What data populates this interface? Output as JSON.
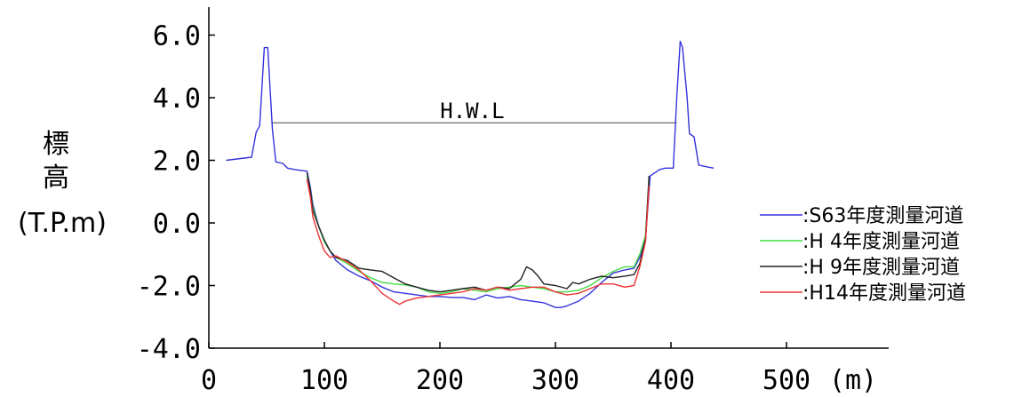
{
  "chart_data": {
    "type": "line",
    "ylabel": [
      "標",
      "高",
      "(T.P.m)"
    ],
    "xunit": "(m)",
    "xlim": [
      0,
      550
    ],
    "ylim": [
      -4.0,
      6.5
    ],
    "xticks": [
      {
        "value": 0,
        "label": "0"
      },
      {
        "value": 100,
        "label": "100"
      },
      {
        "value": 200,
        "label": "200"
      },
      {
        "value": 300,
        "label": "300"
      },
      {
        "value": 400,
        "label": "400"
      },
      {
        "value": 500,
        "label": "500"
      }
    ],
    "yticks": [
      {
        "value": 6.0,
        "label": "6.0"
      },
      {
        "value": 4.0,
        "label": "4.0"
      },
      {
        "value": 2.0,
        "label": "2.0"
      },
      {
        "value": 0.0,
        "label": "0.0"
      },
      {
        "value": -2.0,
        "label": "-2.0"
      },
      {
        "value": -4.0,
        "label": "-4.0"
      }
    ],
    "grid": false,
    "legend_position": "right",
    "hwl": {
      "label": "H.W.L",
      "y": 3.2,
      "x": [
        55,
        405
      ],
      "label_x": 228
    },
    "series": [
      {
        "name": ":S63年度測量河道",
        "color": "#3333dd",
        "points": [
          [
            15,
            2.0
          ],
          [
            37,
            2.1
          ],
          [
            41,
            2.9
          ],
          [
            44,
            3.1
          ],
          [
            48,
            5.6
          ],
          [
            51,
            5.6
          ],
          [
            55,
            3.0
          ],
          [
            58,
            1.95
          ],
          [
            64,
            1.9
          ],
          [
            68,
            1.75
          ],
          [
            75,
            1.7
          ],
          [
            85,
            1.65
          ],
          [
            88,
            1.1
          ],
          [
            90,
            0.6
          ],
          [
            95,
            -0.1
          ],
          [
            100,
            -0.6
          ],
          [
            105,
            -0.9
          ],
          [
            110,
            -1.2
          ],
          [
            120,
            -1.5
          ],
          [
            130,
            -1.7
          ],
          [
            140,
            -1.85
          ],
          [
            150,
            -2.05
          ],
          [
            160,
            -2.2
          ],
          [
            170,
            -2.25
          ],
          [
            180,
            -2.3
          ],
          [
            190,
            -2.35
          ],
          [
            200,
            -2.35
          ],
          [
            210,
            -2.38
          ],
          [
            220,
            -2.38
          ],
          [
            230,
            -2.45
          ],
          [
            240,
            -2.3
          ],
          [
            250,
            -2.4
          ],
          [
            260,
            -2.35
          ],
          [
            270,
            -2.45
          ],
          [
            280,
            -2.5
          ],
          [
            290,
            -2.55
          ],
          [
            300,
            -2.7
          ],
          [
            305,
            -2.7
          ],
          [
            310,
            -2.65
          ],
          [
            320,
            -2.5
          ],
          [
            330,
            -2.25
          ],
          [
            340,
            -1.9
          ],
          [
            350,
            -1.6
          ],
          [
            360,
            -1.5
          ],
          [
            368,
            -1.45
          ],
          [
            373,
            -1.1
          ],
          [
            378,
            -0.5
          ],
          [
            382,
            1.5
          ],
          [
            390,
            1.7
          ],
          [
            395,
            1.75
          ],
          [
            402,
            1.75
          ],
          [
            405,
            4.0
          ],
          [
            408,
            5.8
          ],
          [
            410,
            5.6
          ],
          [
            414,
            4.0
          ],
          [
            416,
            2.85
          ],
          [
            420,
            2.75
          ],
          [
            424,
            1.85
          ],
          [
            430,
            1.8
          ],
          [
            437,
            1.75
          ]
        ]
      },
      {
        "name": ":H 4年度測量河道",
        "color": "#44dd44",
        "points": [
          [
            85,
            1.5
          ],
          [
            88,
            1.0
          ],
          [
            90,
            0.5
          ],
          [
            95,
            -0.1
          ],
          [
            100,
            -0.6
          ],
          [
            105,
            -0.9
          ],
          [
            110,
            -1.1
          ],
          [
            120,
            -1.3
          ],
          [
            130,
            -1.55
          ],
          [
            140,
            -1.75
          ],
          [
            150,
            -1.9
          ],
          [
            160,
            -1.95
          ],
          [
            170,
            -1.98
          ],
          [
            180,
            -2.05
          ],
          [
            190,
            -2.2
          ],
          [
            200,
            -2.25
          ],
          [
            210,
            -2.2
          ],
          [
            220,
            -2.1
          ],
          [
            230,
            -2.15
          ],
          [
            240,
            -2.2
          ],
          [
            250,
            -2.1
          ],
          [
            260,
            -2.05
          ],
          [
            270,
            -2.0
          ],
          [
            280,
            -2.05
          ],
          [
            290,
            -2.1
          ],
          [
            300,
            -2.2
          ],
          [
            310,
            -2.2
          ],
          [
            320,
            -2.15
          ],
          [
            330,
            -2.0
          ],
          [
            340,
            -1.75
          ],
          [
            350,
            -1.55
          ],
          [
            360,
            -1.4
          ],
          [
            368,
            -1.4
          ],
          [
            373,
            -1.0
          ],
          [
            378,
            -0.4
          ],
          [
            381,
            1.4
          ]
        ]
      },
      {
        "name": ":H 9年度測量河道",
        "color": "#222222",
        "points": [
          [
            85,
            1.6
          ],
          [
            88,
            1.0
          ],
          [
            90,
            0.4
          ],
          [
            95,
            -0.1
          ],
          [
            100,
            -0.55
          ],
          [
            105,
            -0.9
          ],
          [
            110,
            -1.1
          ],
          [
            120,
            -1.2
          ],
          [
            130,
            -1.45
          ],
          [
            140,
            -1.5
          ],
          [
            150,
            -1.55
          ],
          [
            160,
            -1.75
          ],
          [
            170,
            -1.95
          ],
          [
            180,
            -2.05
          ],
          [
            190,
            -2.15
          ],
          [
            200,
            -2.2
          ],
          [
            210,
            -2.15
          ],
          [
            220,
            -2.1
          ],
          [
            230,
            -2.05
          ],
          [
            240,
            -2.15
          ],
          [
            250,
            -2.05
          ],
          [
            260,
            -2.1
          ],
          [
            270,
            -1.8
          ],
          [
            275,
            -1.4
          ],
          [
            280,
            -1.5
          ],
          [
            285,
            -1.7
          ],
          [
            290,
            -1.95
          ],
          [
            300,
            -2.0
          ],
          [
            310,
            -2.1
          ],
          [
            315,
            -1.9
          ],
          [
            320,
            -1.95
          ],
          [
            330,
            -1.8
          ],
          [
            340,
            -1.7
          ],
          [
            350,
            -1.75
          ],
          [
            360,
            -1.7
          ],
          [
            368,
            -1.65
          ],
          [
            373,
            -1.3
          ],
          [
            378,
            -0.5
          ],
          [
            381,
            1.5
          ]
        ]
      },
      {
        "name": ":H14年度測量河道",
        "color": "#ee3333",
        "points": [
          [
            85,
            1.4
          ],
          [
            88,
            0.8
          ],
          [
            90,
            0.2
          ],
          [
            95,
            -0.4
          ],
          [
            100,
            -0.9
          ],
          [
            105,
            -1.1
          ],
          [
            110,
            -1.05
          ],
          [
            120,
            -1.25
          ],
          [
            130,
            -1.5
          ],
          [
            140,
            -1.85
          ],
          [
            150,
            -2.25
          ],
          [
            160,
            -2.5
          ],
          [
            165,
            -2.6
          ],
          [
            170,
            -2.5
          ],
          [
            180,
            -2.4
          ],
          [
            190,
            -2.35
          ],
          [
            200,
            -2.3
          ],
          [
            210,
            -2.25
          ],
          [
            220,
            -2.2
          ],
          [
            230,
            -2.1
          ],
          [
            240,
            -2.15
          ],
          [
            250,
            -2.05
          ],
          [
            260,
            -2.15
          ],
          [
            270,
            -2.1
          ],
          [
            280,
            -2.05
          ],
          [
            290,
            -2.05
          ],
          [
            300,
            -2.2
          ],
          [
            310,
            -2.3
          ],
          [
            320,
            -2.25
          ],
          [
            330,
            -2.1
          ],
          [
            340,
            -1.95
          ],
          [
            350,
            -1.95
          ],
          [
            360,
            -2.05
          ],
          [
            368,
            -2.0
          ],
          [
            373,
            -1.4
          ],
          [
            378,
            -0.6
          ],
          [
            381,
            1.2
          ]
        ]
      }
    ]
  }
}
